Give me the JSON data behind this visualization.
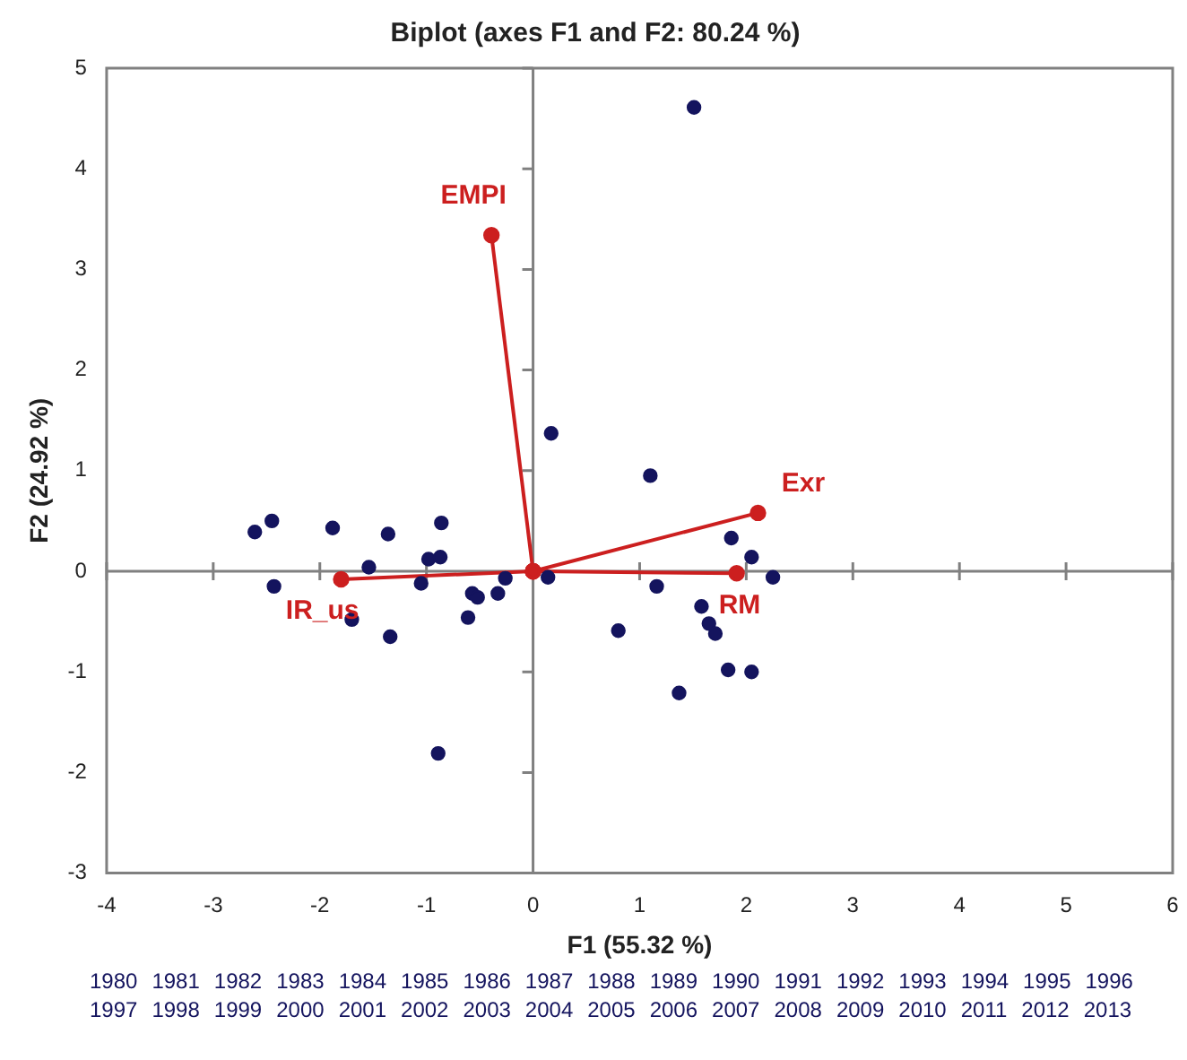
{
  "chart_data": {
    "type": "scatter",
    "title": "Biplot (axes F1 and F2: 80.24 %)",
    "xlabel": "F1 (55.32 %)",
    "ylabel": "F2 (24.92 %)",
    "xlim": [
      -4,
      6
    ],
    "xticks": [
      -4,
      -3,
      -2,
      -1,
      0,
      1,
      2,
      3,
      4,
      5,
      6
    ],
    "ylim": [
      -3,
      5
    ],
    "yticks": [
      -3,
      -2,
      -1,
      0,
      1,
      2,
      3,
      4,
      5
    ],
    "marker": "circle",
    "series": [
      {
        "color": "#14145e",
        "x": [
          -2.61,
          -2.45,
          -1.88,
          -1.36,
          -0.86,
          -0.98,
          -0.87,
          -1.54,
          -2.43,
          -1.05,
          -0.26,
          -0.57,
          -0.52,
          -0.33,
          -1.7,
          -1.34,
          -0.61,
          0.14,
          0.17,
          -0.89,
          1.51,
          1.1,
          1.86,
          2.05,
          2.25,
          1.16,
          1.58,
          1.65,
          1.71,
          0.8,
          1.83,
          2.05,
          1.37
        ],
        "values": [
          0.39,
          0.5,
          0.43,
          0.37,
          0.48,
          0.12,
          0.14,
          0.04,
          -0.15,
          -0.12,
          -0.07,
          -0.22,
          -0.26,
          -0.22,
          -0.48,
          -0.65,
          -0.46,
          -0.06,
          1.37,
          -1.81,
          4.61,
          0.95,
          0.33,
          0.14,
          -0.06,
          -0.15,
          -0.35,
          -0.52,
          -0.62,
          -0.59,
          -0.98,
          -1.0,
          -1.21
        ]
      },
      {
        "type": "line",
        "name": "EMPI",
        "color": "#cc1f1f",
        "x": [
          0,
          -0.39
        ],
        "values": [
          0,
          3.34
        ]
      },
      {
        "type": "line",
        "name": "Exr",
        "color": "#cc1f1f",
        "x": [
          0,
          2.11
        ],
        "values": [
          0,
          0.58
        ]
      },
      {
        "type": "line",
        "name": "RM",
        "color": "#cc1f1f",
        "x": [
          0,
          1.91
        ],
        "values": [
          0,
          -0.02
        ]
      },
      {
        "type": "line",
        "name": "IR_us",
        "color": "#cc1f1f",
        "x": [
          0,
          -1.8
        ],
        "values": [
          0,
          -0.08
        ]
      }
    ],
    "annotations": [
      "1980",
      "1981",
      "1982",
      "1983",
      "1984",
      "1985",
      "1986",
      "1987",
      "1988",
      "1989",
      "1990",
      "1991",
      "1992",
      "1993",
      "1994",
      "1995",
      "1996",
      "1997",
      "1998",
      "1999",
      "2000",
      "2001",
      "2002",
      "2003",
      "2004",
      "2005",
      "2006",
      "2007",
      "2008",
      "2009",
      "2010",
      "2011",
      "2012",
      "2013"
    ]
  }
}
